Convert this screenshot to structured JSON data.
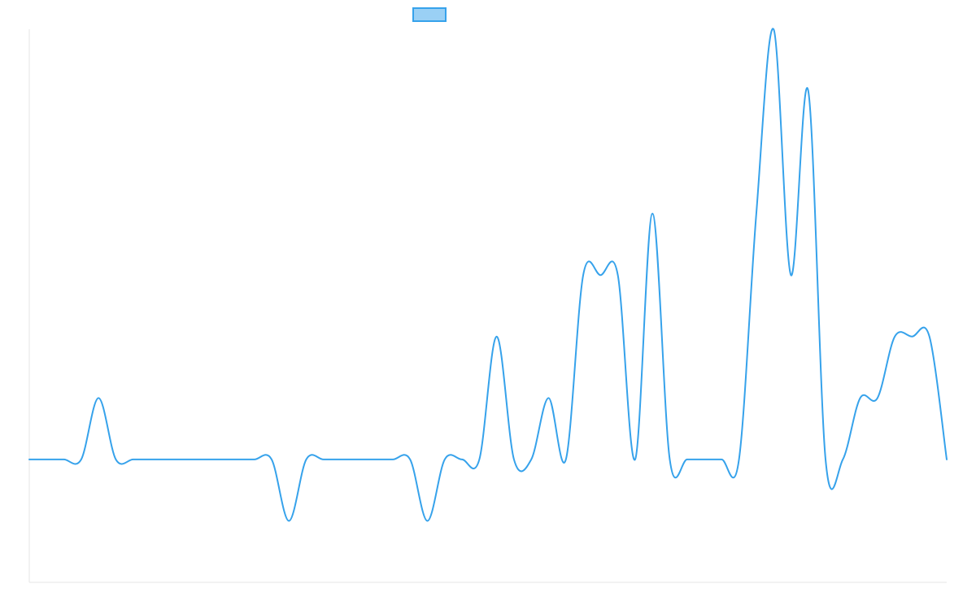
{
  "chart_data": {
    "type": "line",
    "title": "",
    "xlabel": "",
    "ylabel": "",
    "grid": false,
    "legend": {
      "position": "top-center",
      "entries": [
        {
          "label": "",
          "color": "#36a2eb",
          "fill": "#9ad0f5"
        }
      ]
    },
    "x": [
      0,
      1,
      2,
      3,
      4,
      5,
      6,
      7,
      8,
      9,
      10,
      11,
      12,
      13,
      14,
      15,
      16,
      17,
      18,
      19,
      20,
      21,
      22,
      23,
      24,
      25,
      26,
      27,
      28,
      29,
      30,
      31,
      32,
      33,
      34,
      35,
      36,
      37,
      38,
      39,
      40,
      41,
      42,
      43,
      44,
      45,
      46,
      47,
      48,
      49,
      50,
      51,
      52,
      53
    ],
    "ylim": [
      -2,
      7
    ],
    "series": [
      {
        "color": "#36a2eb",
        "values": [
          0,
          0,
          0,
          0,
          1,
          0,
          0,
          0,
          0,
          0,
          0,
          0,
          0,
          0,
          0,
          -1,
          0,
          0,
          0,
          0,
          0,
          0,
          0,
          -1,
          0,
          0,
          0,
          2,
          0,
          0,
          1,
          0,
          3,
          3,
          3,
          0,
          4,
          0,
          0,
          0,
          0,
          0,
          4,
          7,
          3,
          6,
          0,
          0,
          1,
          1,
          2,
          2,
          2,
          0
        ]
      }
    ]
  }
}
